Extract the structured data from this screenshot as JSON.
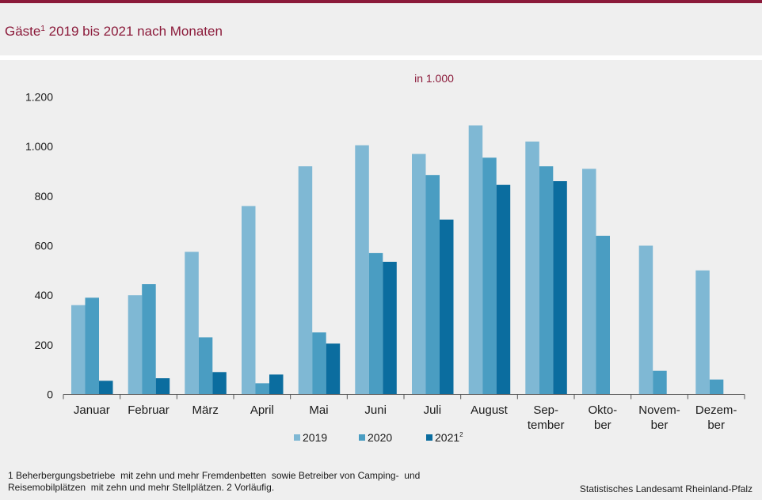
{
  "page": {
    "title_main": "Gäste",
    "title_sup": "1",
    "title_rest": " 2019 bis 2021 nach Monaten",
    "footnote_line1": "1 Beherbergungsbetriebe  mit zehn und mehr Fremdenbetten  sowie Betreiber von Camping-  und",
    "footnote_line2": "Reisemobilplätzen  mit zehn und mehr Stellplätzen. 2 Vorläufig.",
    "source": "Statistisches Landesamt Rheinland-Pfalz"
  },
  "chart_data": {
    "type": "bar",
    "subtitle": "in 1.000",
    "categories": [
      [
        "Januar"
      ],
      [
        "Februar"
      ],
      [
        "März"
      ],
      [
        "April"
      ],
      [
        "Mai"
      ],
      [
        "Juni"
      ],
      [
        "Juli"
      ],
      [
        "August"
      ],
      [
        "Sep-",
        "tember"
      ],
      [
        "Okto-",
        "ber"
      ],
      [
        "Novem-",
        "ber"
      ],
      [
        "Dezem-",
        "ber"
      ]
    ],
    "series": [
      {
        "name": "2019",
        "sup": "",
        "color": "#7fb8d4",
        "values": [
          360,
          400,
          575,
          760,
          920,
          1005,
          970,
          1085,
          1020,
          910,
          600,
          500
        ]
      },
      {
        "name": "2020",
        "sup": "",
        "color": "#4a9dc2",
        "values": [
          390,
          445,
          230,
          45,
          250,
          570,
          885,
          955,
          920,
          640,
          95,
          60
        ]
      },
      {
        "name": "2021",
        "sup": "2",
        "color": "#0b6d9f",
        "values": [
          55,
          65,
          90,
          80,
          205,
          535,
          705,
          845,
          860,
          null,
          null,
          null
        ]
      }
    ],
    "yticks": [
      0,
      200,
      400,
      600,
      800,
      1000,
      1200
    ],
    "ytick_labels": [
      "0",
      "200",
      "400",
      "600",
      "800",
      "1.000",
      "1.200"
    ],
    "ylim": [
      0,
      1200
    ],
    "grid": false,
    "legend_position": "bottom-center"
  }
}
